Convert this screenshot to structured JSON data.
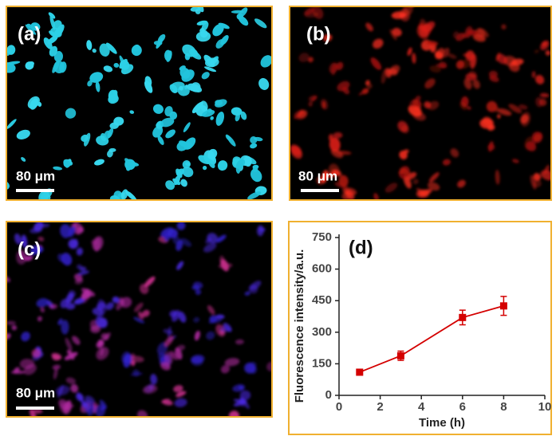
{
  "panels": [
    {
      "label": "(a)",
      "scale_bar": "80 μm"
    },
    {
      "label": "(b)",
      "scale_bar": "80 μm"
    },
    {
      "label": "(c)",
      "scale_bar": "80 μm"
    }
  ],
  "chart_data": {
    "type": "line",
    "annotation": "(d)",
    "x_label": "Time (h)",
    "y_label": "Fluorescence intensity/a.u.",
    "x": [
      1,
      3,
      6,
      8
    ],
    "values": [
      110,
      188,
      370,
      425
    ],
    "errors": [
      8,
      22,
      35,
      45
    ],
    "color": "#d40000",
    "xlim": [
      0,
      10
    ],
    "xticks": [
      0,
      2,
      4,
      6,
      8,
      10
    ],
    "ylim": [
      0,
      750
    ],
    "yticks": [
      0,
      150,
      300,
      450,
      600,
      750
    ]
  }
}
